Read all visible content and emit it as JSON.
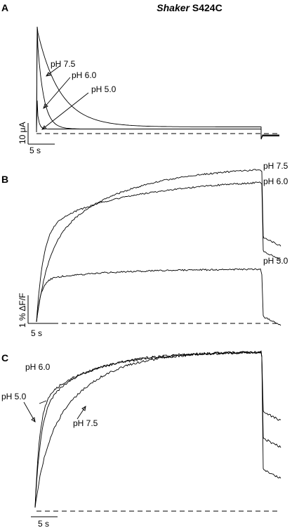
{
  "figure": {
    "title_italic": "Shaker",
    "title_rest": " S424C"
  },
  "chart_data": [
    {
      "panel": "A",
      "type": "line",
      "series": [
        {
          "name": "pH 7.5",
          "label": "pH 7.5",
          "peak": 1.0,
          "end_level": 0.05,
          "tau": 0.1,
          "tail": 0.015
        },
        {
          "name": "pH 6.0",
          "label": "pH 6.0",
          "peak": 1.0,
          "end_level": 0.03,
          "tau": 0.028,
          "tail": 0.008
        },
        {
          "name": "pH 5.0",
          "label": "pH 5.0",
          "peak": 0.3,
          "end_level": 0.03,
          "tau": 0.008,
          "tail": 0.003
        }
      ],
      "scale_bar_y": "10 μA",
      "scale_bar_x": "5 s",
      "baseline": "dashed"
    },
    {
      "panel": "B",
      "type": "line",
      "series": [
        {
          "name": "pH 7.5",
          "label": "pH 7.5",
          "plateau": 1.0,
          "fast": 0.45,
          "tau_fast": 0.05,
          "tau_slow": 0.32,
          "after_off": 0.55
        },
        {
          "name": "pH 6.0",
          "label": "pH 6.0",
          "plateau": 0.92,
          "fast": 0.65,
          "tau_fast": 0.03,
          "tau_slow": 0.4,
          "after_off": 0.5
        },
        {
          "name": "pH 5.0",
          "label": "pH 5.0",
          "plateau": 0.34,
          "fast": 0.8,
          "tau_fast": 0.02,
          "tau_slow": 0.3,
          "after_off": 0.12
        }
      ],
      "scale_bar_y": "1 % ΔF/F",
      "scale_bar_x": "5 s",
      "baseline": "dashed"
    },
    {
      "panel": "C",
      "type": "line",
      "series": [
        {
          "name": "pH 6.0",
          "label": "pH 6.0",
          "plateau": 1.0,
          "fast": 0.62,
          "tau_fast": 0.025,
          "tau_slow": 0.22,
          "after_off": 0.45
        },
        {
          "name": "pH 5.0",
          "label": "pH 5.0",
          "plateau": 1.0,
          "fast": 0.66,
          "tau_fast": 0.02,
          "tau_slow": 0.24,
          "after_off": 0.25
        },
        {
          "name": "pH 7.5",
          "label": "pH 7.5",
          "plateau": 1.0,
          "fast": 0.3,
          "tau_fast": 0.04,
          "tau_slow": 0.2,
          "after_off": 0.62
        }
      ],
      "scale_bar_x": "5 s",
      "baseline": "dashed"
    }
  ]
}
